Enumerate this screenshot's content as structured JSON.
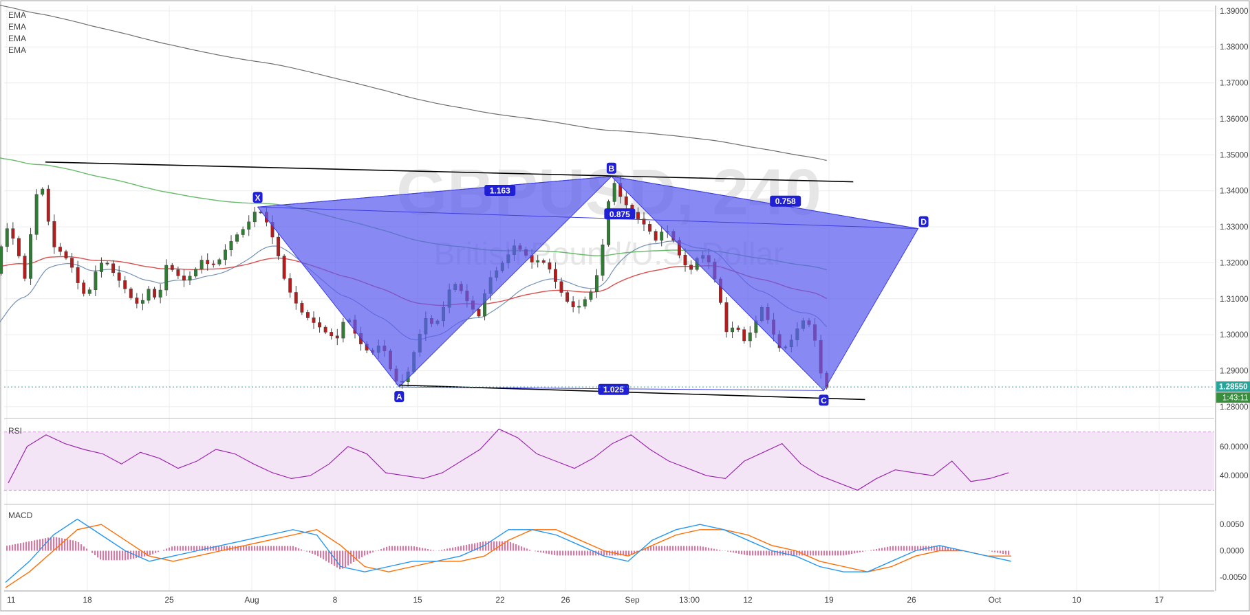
{
  "chart_data": {
    "type": "candlestick",
    "symbol_watermark": "GBPUSD, 240",
    "name_watermark": "British Pound/U.S. Dollar",
    "indicators": [
      "EMA",
      "EMA",
      "EMA",
      "EMA"
    ],
    "x_ticks": [
      "11",
      "18",
      "25",
      "Aug",
      "8",
      "15",
      "22",
      "26",
      "Sep",
      "13:00",
      "12",
      "19",
      "26",
      "Oct",
      "10",
      "17"
    ],
    "price_axis": {
      "ticks": [
        "1.39000",
        "1.38000",
        "1.37000",
        "1.36000",
        "1.35000",
        "1.34000",
        "1.33000",
        "1.32000",
        "1.31000",
        "1.30000",
        "1.29000",
        "1.28000"
      ],
      "ylim": [
        1.2775,
        1.3915
      ],
      "current_price": "1.28550",
      "countdown": "1:43:11"
    },
    "pattern": {
      "points": [
        {
          "label": "X",
          "day": 23.5,
          "price": 1.3355
        },
        {
          "label": "A",
          "day": 35.5,
          "price": 1.2855
        },
        {
          "label": "B",
          "day": 53.5,
          "price": 1.344
        },
        {
          "label": "C",
          "day": 71.5,
          "price": 1.2845
        },
        {
          "label": "D",
          "day": 79.5,
          "price": 1.3295
        }
      ],
      "ratios": {
        "xb": "1.163",
        "xd": "0.875",
        "bd": "0.758",
        "ac": "1.025"
      }
    },
    "trendlines": [
      {
        "from": {
          "day": 5.5,
          "price": 1.348
        },
        "to": {
          "day": 74,
          "price": 1.3425
        }
      },
      {
        "from": {
          "day": 35.5,
          "price": 1.286
        },
        "to": {
          "day": 75,
          "price": 1.282
        }
      }
    ],
    "price_series": [
      {
        "day": 0.0,
        "price": 1.3
      },
      {
        "day": 0.8,
        "price": 1.308
      },
      {
        "day": 1.5,
        "price": 1.322
      },
      {
        "day": 2.3,
        "price": 1.33
      },
      {
        "day": 3.0,
        "price": 1.325
      },
      {
        "day": 3.8,
        "price": 1.315
      },
      {
        "day": 4.5,
        "price": 1.335
      },
      {
        "day": 5.0,
        "price": 1.343
      },
      {
        "day": 5.5,
        "price": 1.338
      },
      {
        "day": 6.0,
        "price": 1.325
      },
      {
        "day": 6.8,
        "price": 1.323
      },
      {
        "day": 7.6,
        "price": 1.32
      },
      {
        "day": 8.3,
        "price": 1.314
      },
      {
        "day": 9.0,
        "price": 1.31
      },
      {
        "day": 9.8,
        "price": 1.318
      },
      {
        "day": 10.5,
        "price": 1.321
      },
      {
        "day": 11.3,
        "price": 1.317
      },
      {
        "day": 12.0,
        "price": 1.314
      },
      {
        "day": 12.8,
        "price": 1.31
      },
      {
        "day": 13.5,
        "price": 1.308
      },
      {
        "day": 14.3,
        "price": 1.313
      },
      {
        "day": 15.0,
        "price": 1.309
      },
      {
        "day": 15.8,
        "price": 1.32
      },
      {
        "day": 16.5,
        "price": 1.317
      },
      {
        "day": 17.3,
        "price": 1.315
      },
      {
        "day": 18.0,
        "price": 1.317
      },
      {
        "day": 18.8,
        "price": 1.321
      },
      {
        "day": 19.5,
        "price": 1.319
      },
      {
        "day": 20.3,
        "price": 1.321
      },
      {
        "day": 21.0,
        "price": 1.325
      },
      {
        "day": 21.8,
        "price": 1.328
      },
      {
        "day": 22.5,
        "price": 1.33
      },
      {
        "day": 23.5,
        "price": 1.3355
      },
      {
        "day": 24.3,
        "price": 1.331
      },
      {
        "day": 25.0,
        "price": 1.325
      },
      {
        "day": 25.8,
        "price": 1.315
      },
      {
        "day": 26.5,
        "price": 1.31
      },
      {
        "day": 27.3,
        "price": 1.306
      },
      {
        "day": 28.0,
        "price": 1.304
      },
      {
        "day": 28.8,
        "price": 1.302
      },
      {
        "day": 29.5,
        "price": 1.3
      },
      {
        "day": 30.3,
        "price": 1.299
      },
      {
        "day": 31.0,
        "price": 1.306
      },
      {
        "day": 31.8,
        "price": 1.3
      },
      {
        "day": 32.5,
        "price": 1.296
      },
      {
        "day": 33.3,
        "price": 1.295
      },
      {
        "day": 34.0,
        "price": 1.298
      },
      {
        "day": 34.8,
        "price": 1.29
      },
      {
        "day": 35.5,
        "price": 1.2855
      },
      {
        "day": 36.3,
        "price": 1.29
      },
      {
        "day": 37.0,
        "price": 1.298
      },
      {
        "day": 37.8,
        "price": 1.305
      },
      {
        "day": 38.5,
        "price": 1.302
      },
      {
        "day": 39.3,
        "price": 1.308
      },
      {
        "day": 40.0,
        "price": 1.315
      },
      {
        "day": 40.8,
        "price": 1.312
      },
      {
        "day": 41.5,
        "price": 1.308
      },
      {
        "day": 42.3,
        "price": 1.305
      },
      {
        "day": 43.0,
        "price": 1.315
      },
      {
        "day": 43.8,
        "price": 1.318
      },
      {
        "day": 44.5,
        "price": 1.321
      },
      {
        "day": 45.3,
        "price": 1.325
      },
      {
        "day": 46.0,
        "price": 1.323
      },
      {
        "day": 46.8,
        "price": 1.32
      },
      {
        "day": 47.5,
        "price": 1.321
      },
      {
        "day": 48.3,
        "price": 1.318
      },
      {
        "day": 49.0,
        "price": 1.313
      },
      {
        "day": 49.8,
        "price": 1.309
      },
      {
        "day": 50.5,
        "price": 1.307
      },
      {
        "day": 51.3,
        "price": 1.31
      },
      {
        "day": 52.0,
        "price": 1.313
      },
      {
        "day": 52.5,
        "price": 1.32
      },
      {
        "day": 53.0,
        "price": 1.33
      },
      {
        "day": 53.5,
        "price": 1.344
      },
      {
        "day": 54.3,
        "price": 1.338
      },
      {
        "day": 55.0,
        "price": 1.335
      },
      {
        "day": 55.8,
        "price": 1.332
      },
      {
        "day": 56.5,
        "price": 1.33
      },
      {
        "day": 57.3,
        "price": 1.326
      },
      {
        "day": 58.0,
        "price": 1.33
      },
      {
        "day": 58.8,
        "price": 1.326
      },
      {
        "day": 59.5,
        "price": 1.32
      },
      {
        "day": 60.3,
        "price": 1.318
      },
      {
        "day": 61.0,
        "price": 1.323
      },
      {
        "day": 61.8,
        "price": 1.32
      },
      {
        "day": 62.5,
        "price": 1.313
      },
      {
        "day": 63.3,
        "price": 1.3
      },
      {
        "day": 64.0,
        "price": 1.303
      },
      {
        "day": 64.8,
        "price": 1.298
      },
      {
        "day": 65.5,
        "price": 1.302
      },
      {
        "day": 66.3,
        "price": 1.308
      },
      {
        "day": 67.0,
        "price": 1.302
      },
      {
        "day": 67.8,
        "price": 1.296
      },
      {
        "day": 68.5,
        "price": 1.297
      },
      {
        "day": 69.3,
        "price": 1.302
      },
      {
        "day": 70.0,
        "price": 1.305
      },
      {
        "day": 70.8,
        "price": 1.298
      },
      {
        "day": 71.5,
        "price": 1.2845
      },
      {
        "day": 71.8,
        "price": 1.2855
      }
    ],
    "rsi": {
      "label": "RSI",
      "ticks": [
        "60.0000",
        "40.0000"
      ],
      "values": [
        35,
        60,
        68,
        62,
        58,
        55,
        48,
        56,
        52,
        45,
        50,
        58,
        55,
        48,
        42,
        38,
        40,
        48,
        60,
        55,
        42,
        40,
        38,
        42,
        50,
        58,
        72,
        66,
        55,
        50,
        45,
        52,
        62,
        68,
        58,
        50,
        45,
        40,
        38,
        50,
        56,
        62,
        48,
        40,
        35,
        30,
        38,
        44,
        42,
        40,
        50,
        36,
        38,
        42
      ]
    },
    "macd": {
      "label": "MACD",
      "ticks": [
        "0.0050",
        "0.0000",
        "-0.0050"
      ],
      "macd": [
        -0.006,
        -0.002,
        0.003,
        0.006,
        0.003,
        0.0,
        -0.002,
        -0.001,
        0.0,
        0.001,
        0.002,
        0.003,
        0.004,
        0.003,
        -0.003,
        -0.004,
        -0.003,
        -0.002,
        -0.002,
        -0.001,
        0.001,
        0.004,
        0.004,
        0.003,
        0.001,
        -0.001,
        -0.002,
        0.002,
        0.004,
        0.005,
        0.004,
        0.002,
        0.0,
        -0.001,
        -0.003,
        -0.004,
        -0.004,
        -0.002,
        0.0,
        0.001,
        0.0,
        -0.001,
        -0.002
      ],
      "signal": [
        -0.007,
        -0.004,
        0.0,
        0.004,
        0.005,
        0.002,
        -0.001,
        -0.002,
        -0.001,
        0.0,
        0.001,
        0.002,
        0.003,
        0.004,
        0.001,
        -0.003,
        -0.004,
        -0.003,
        -0.002,
        -0.002,
        -0.001,
        0.002,
        0.004,
        0.004,
        0.002,
        0.0,
        -0.001,
        0.001,
        0.003,
        0.004,
        0.004,
        0.003,
        0.001,
        0.0,
        -0.002,
        -0.003,
        -0.004,
        -0.003,
        -0.001,
        0.0,
        0.0,
        -0.001,
        -0.001
      ]
    },
    "colors": {
      "pattern_fill": "#5b5cf0",
      "pattern_stroke": "#3d3ee0",
      "bull": "#2e7d32",
      "bear": "#b71c1c",
      "ema_blue": "#5a7fa8",
      "ema_red": "#d32f2f",
      "ema_green": "#4caf50",
      "ema_dark": "#555555",
      "rsi_line": "#9c27b0",
      "rsi_band": "#f3e5f5",
      "macd_line": "#2196f3",
      "signal_line": "#ff6d00",
      "macd_hist": "#e91e63",
      "price_label": "#26a69a"
    }
  }
}
